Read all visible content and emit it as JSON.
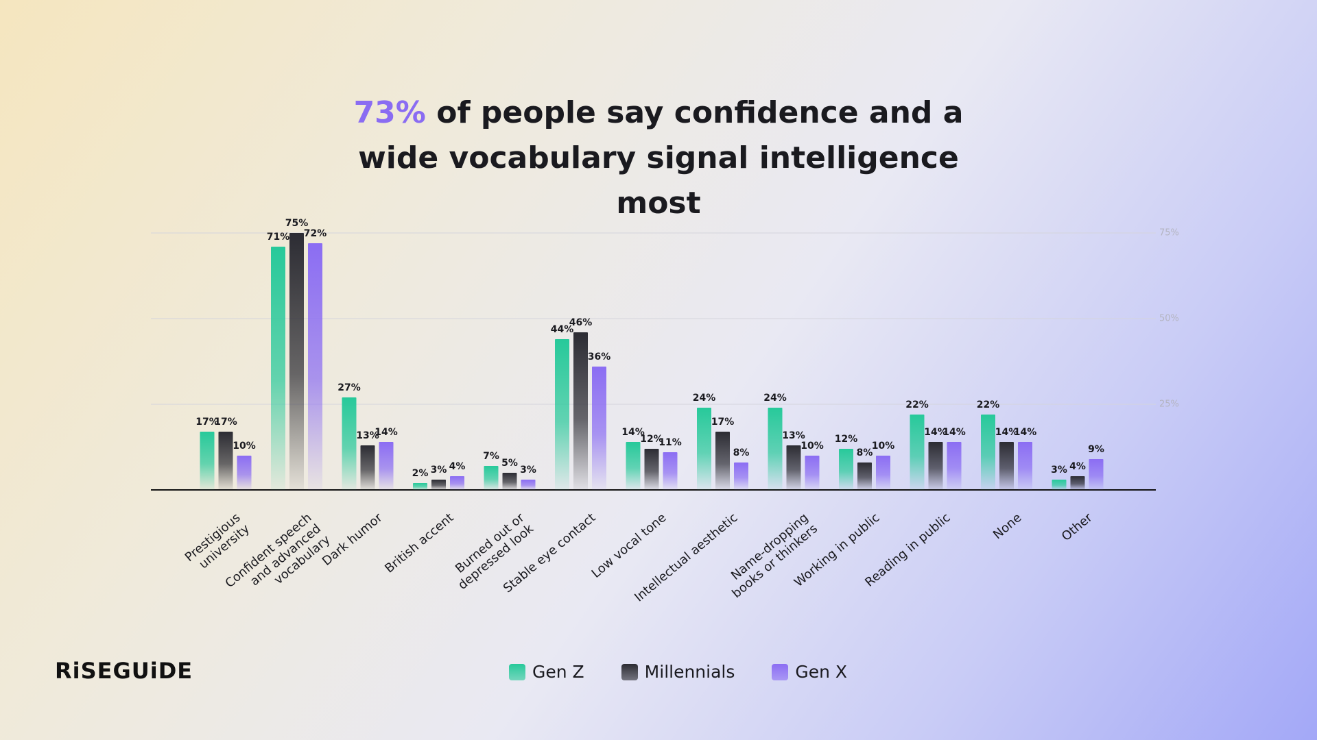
{
  "brand": "RiSEGUiDE",
  "chart_data": {
    "type": "bar",
    "title_highlight": "73%",
    "title": "of people say confidence and a wide vocabulary signal intelligence most",
    "categories": [
      "Prestigious university",
      "Confident speech and advanced vocabulary",
      "Dark humor",
      "British accent",
      "Burned out or depressed look",
      "Stable eye contact",
      "Low vocal tone",
      "Intellectual aesthetic",
      "Name-dropping books or thinkers",
      "Working in public",
      "Reading in public",
      "None",
      "Other"
    ],
    "series": [
      {
        "name": "Gen Z",
        "color": "#27c99a",
        "values": [
          17,
          71,
          27,
          2,
          7,
          44,
          14,
          24,
          24,
          12,
          22,
          22,
          3
        ],
        "value_labels": [
          "17%",
          "71%",
          "27%",
          "2%",
          "7%",
          "44%",
          "14%",
          "24%",
          "24%",
          "12%",
          "22%",
          "22%",
          "3%"
        ]
      },
      {
        "name": "Millennials",
        "color": "#2c2c33",
        "values": [
          17,
          75,
          13,
          3,
          5,
          46,
          12,
          17,
          13,
          8,
          14,
          14,
          4
        ],
        "value_labels": [
          "17%",
          "75%",
          "13%",
          "3%",
          "5%",
          "46%",
          "12%",
          "17%",
          "13%",
          "8%",
          "14%",
          "14%",
          "4%"
        ]
      },
      {
        "name": "Gen X",
        "color": "#8b6df3",
        "values": [
          10,
          72,
          14,
          4,
          3,
          36,
          11,
          8,
          10,
          10,
          14,
          14,
          9
        ],
        "value_labels": [
          "10%",
          "72%",
          "14%",
          "4%",
          "3%",
          "36%",
          "11%",
          "8%",
          "10%",
          "10%",
          "14%",
          "14%",
          "9%"
        ]
      }
    ],
    "ylim": [
      0,
      75
    ],
    "yticks": [
      {
        "value": 25,
        "label": "25%"
      },
      {
        "value": 50,
        "label": "50%"
      },
      {
        "value": 75,
        "label": "75%"
      }
    ],
    "grid": true
  }
}
